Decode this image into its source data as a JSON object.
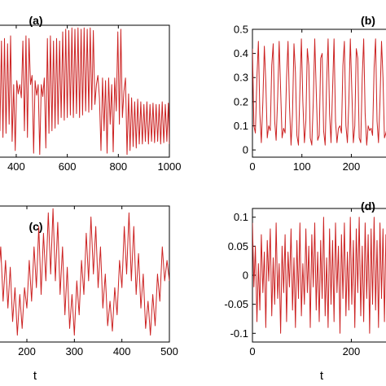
{
  "chart_data": [
    {
      "id": "a",
      "type": "line",
      "panel_label": "(a)",
      "xlabel": "",
      "ylabel": "",
      "xlim": [
        330,
        1000
      ],
      "ylim": [
        0,
        1
      ],
      "xticks": [
        400,
        600,
        800,
        1000
      ],
      "xtick_labels": [
        "400",
        "600",
        "800",
        "1000"
      ],
      "yticks": [],
      "ytick_labels": [],
      "grid": false,
      "series": [
        {
          "color": "#cc2222",
          "x": [
            330,
            336,
            342,
            348,
            354,
            360,
            366,
            372,
            378,
            384,
            390,
            396,
            402,
            408,
            414,
            420,
            426,
            432,
            438,
            444,
            450,
            456,
            462,
            468,
            474,
            480,
            486,
            492,
            498,
            504,
            510,
            516,
            522,
            528,
            534,
            540,
            546,
            552,
            558,
            564,
            570,
            576,
            582,
            588,
            594,
            600,
            606,
            612,
            618,
            624,
            630,
            636,
            642,
            648,
            654,
            660,
            666,
            672,
            678,
            684,
            690,
            696,
            702,
            708,
            714,
            720,
            726,
            732,
            738,
            744,
            750,
            756,
            762,
            768,
            774,
            780,
            786,
            792,
            798,
            804,
            810,
            816,
            822,
            828,
            834,
            840,
            846,
            852,
            858,
            864,
            870,
            876,
            882,
            888,
            894,
            900,
            906,
            912,
            918,
            924,
            930,
            936,
            942,
            948,
            954,
            960,
            966,
            972,
            978,
            984,
            990,
            996,
            1000
          ],
          "y": [
            0.62,
            0.2,
            0.88,
            0.15,
            0.9,
            0.18,
            0.86,
            0.25,
            0.92,
            0.12,
            0.55,
            0.05,
            0.58,
            0.48,
            0.55,
            0.45,
            0.88,
            0.2,
            0.92,
            0.15,
            0.9,
            0.55,
            0.62,
            0.03,
            0.58,
            0.47,
            0.55,
            0.02,
            0.55,
            0.46,
            0.6,
            0.07,
            0.9,
            0.18,
            0.92,
            0.2,
            0.88,
            0.22,
            0.9,
            0.25,
            0.88,
            0.3,
            0.95,
            0.28,
            0.97,
            0.3,
            0.96,
            0.32,
            0.98,
            0.3,
            0.97,
            0.33,
            0.98,
            0.3,
            0.97,
            0.32,
            0.98,
            0.35,
            0.97,
            0.34,
            0.98,
            0.36,
            0.96,
            0.4,
            0.55,
            0.62,
            0.45,
            0.05,
            0.6,
            0.2,
            0.58,
            0.03,
            0.6,
            0.25,
            0.55,
            0.04,
            0.6,
            0.35,
            0.95,
            0.25,
            0.97,
            0.3,
            0.5,
            0.6,
            0.02,
            0.48,
            0.05,
            0.45,
            0.08,
            0.42,
            0.07,
            0.44,
            0.1,
            0.42,
            0.1,
            0.4,
            0.12,
            0.42,
            0.1,
            0.4,
            0.12,
            0.41,
            0.11,
            0.4,
            0.12,
            0.4,
            0.1,
            0.42,
            0.11,
            0.4,
            0.12,
            0.41,
            0.1
          ]
        }
      ]
    },
    {
      "id": "b",
      "type": "line",
      "panel_label": "(b)",
      "xlabel": "",
      "ylabel": "",
      "xlim": [
        0,
        280
      ],
      "ylim": [
        -0.03,
        0.5
      ],
      "xticks": [
        0,
        100,
        200
      ],
      "xtick_labels": [
        "0",
        "100",
        "200"
      ],
      "yticks": [
        0,
        0.1,
        0.2,
        0.3,
        0.4,
        0.5
      ],
      "ytick_labels": [
        "0",
        "0.1",
        "0.2",
        "0.3",
        "0.4",
        "0.5"
      ],
      "grid": false,
      "series": [
        {
          "color": "#cc2222",
          "x": [
            0,
            3,
            6,
            9,
            12,
            15,
            18,
            21,
            24,
            27,
            30,
            33,
            36,
            39,
            42,
            45,
            48,
            51,
            54,
            57,
            60,
            63,
            66,
            69,
            72,
            75,
            78,
            81,
            84,
            87,
            90,
            93,
            96,
            99,
            102,
            105,
            108,
            111,
            114,
            117,
            120,
            123,
            126,
            129,
            132,
            135,
            138,
            141,
            144,
            147,
            150,
            153,
            156,
            159,
            162,
            165,
            168,
            171,
            174,
            177,
            180,
            183,
            186,
            189,
            192,
            195,
            198,
            201,
            204,
            207,
            210,
            213,
            216,
            219,
            222,
            225,
            228,
            231,
            234,
            237,
            240,
            243,
            246,
            249,
            252,
            255,
            258,
            261,
            264,
            267,
            270,
            273,
            276,
            280
          ],
          "y": [
            0.42,
            0.1,
            0.07,
            0.3,
            0.45,
            0.15,
            0.03,
            0.2,
            0.43,
            0.28,
            0.05,
            0.1,
            0.08,
            0.35,
            0.44,
            0.12,
            0.04,
            0.22,
            0.45,
            0.25,
            0.05,
            0.09,
            0.07,
            0.3,
            0.45,
            0.18,
            0.02,
            0.15,
            0.44,
            0.32,
            0.06,
            0.02,
            0.25,
            0.46,
            0.2,
            0.03,
            0.12,
            0.42,
            0.35,
            0.05,
            0.02,
            0.2,
            0.46,
            0.25,
            0.04,
            0.06,
            0.38,
            0.4,
            0.08,
            0.02,
            0.28,
            0.46,
            0.15,
            0.03,
            0.25,
            0.46,
            0.12,
            0.03,
            0.09,
            0.1,
            0.07,
            0.35,
            0.45,
            0.1,
            0.03,
            0.2,
            0.46,
            0.25,
            0.03,
            0.1,
            0.42,
            0.38,
            0.05,
            0.03,
            0.3,
            0.46,
            0.15,
            0.02,
            0.1,
            0.08,
            0.09,
            0.06,
            0.34,
            0.46,
            0.12,
            0.03,
            0.2,
            0.45,
            0.3,
            0.05,
            0.07,
            0.1,
            0.06,
            0.3
          ]
        }
      ]
    },
    {
      "id": "c",
      "type": "line",
      "panel_label": "(c)",
      "xlabel": "t",
      "ylabel": "",
      "xlim": [
        140,
        500
      ],
      "ylim": [
        0,
        1
      ],
      "xticks": [
        200,
        300,
        400,
        500
      ],
      "xtick_labels": [
        "200",
        "300",
        "400",
        "500"
      ],
      "yticks": [],
      "ytick_labels": [],
      "grid": false,
      "series": [
        {
          "color": "#cc2222",
          "x": [
            140,
            145,
            150,
            155,
            160,
            165,
            170,
            175,
            180,
            185,
            190,
            195,
            200,
            205,
            210,
            215,
            220,
            225,
            230,
            235,
            240,
            245,
            250,
            255,
            260,
            265,
            270,
            275,
            280,
            285,
            290,
            295,
            300,
            305,
            310,
            315,
            320,
            325,
            330,
            335,
            340,
            345,
            350,
            355,
            360,
            365,
            370,
            375,
            380,
            385,
            390,
            395,
            400,
            405,
            410,
            415,
            420,
            425,
            430,
            435,
            440,
            445,
            450,
            455,
            460,
            465,
            470,
            475,
            480,
            485,
            490,
            495,
            500
          ],
          "y": [
            0.45,
            0.7,
            0.3,
            0.6,
            0.25,
            0.55,
            0.15,
            0.4,
            0.05,
            0.35,
            0.1,
            0.4,
            0.25,
            0.6,
            0.3,
            0.7,
            0.4,
            0.85,
            0.35,
            0.8,
            0.45,
            0.95,
            0.5,
            0.98,
            0.45,
            0.88,
            0.35,
            0.7,
            0.2,
            0.55,
            0.1,
            0.35,
            0.05,
            0.45,
            0.2,
            0.6,
            0.35,
            0.8,
            0.45,
            0.92,
            0.5,
            0.85,
            0.4,
            0.7,
            0.25,
            0.5,
            0.12,
            0.3,
            0.08,
            0.4,
            0.2,
            0.6,
            0.4,
            0.85,
            0.5,
            0.95,
            0.45,
            0.85,
            0.35,
            0.65,
            0.25,
            0.5,
            0.1,
            0.3,
            0.05,
            0.35,
            0.12,
            0.5,
            0.3,
            0.7,
            0.45,
            0.6,
            0.45
          ]
        }
      ]
    },
    {
      "id": "d",
      "type": "line",
      "panel_label": "(d)",
      "xlabel": "t",
      "ylabel": "",
      "xlim": [
        0,
        280
      ],
      "ylim": [
        -0.115,
        0.115
      ],
      "xticks": [
        0,
        200
      ],
      "xtick_labels": [
        "0",
        "200"
      ],
      "yticks": [
        -0.1,
        -0.05,
        0,
        0.05,
        0.1
      ],
      "ytick_labels": [
        "-0.1",
        "-0.05",
        "0",
        "0.05",
        "0.1"
      ],
      "grid": false,
      "series": [
        {
          "color": "#cc2222",
          "x": [
            0,
            3,
            6,
            9,
            12,
            15,
            18,
            21,
            24,
            27,
            30,
            33,
            36,
            39,
            42,
            45,
            48,
            51,
            54,
            57,
            60,
            63,
            66,
            69,
            72,
            75,
            78,
            81,
            84,
            87,
            90,
            93,
            96,
            99,
            102,
            105,
            108,
            111,
            114,
            117,
            120,
            123,
            126,
            129,
            132,
            135,
            138,
            141,
            144,
            147,
            150,
            153,
            156,
            159,
            162,
            165,
            168,
            171,
            174,
            177,
            180,
            183,
            186,
            189,
            192,
            195,
            198,
            201,
            204,
            207,
            210,
            213,
            216,
            219,
            222,
            225,
            228,
            231,
            234,
            237,
            240,
            243,
            246,
            249,
            252,
            255,
            258,
            261,
            264,
            267,
            270,
            273,
            276,
            280
          ],
          "y": [
            0.09,
            -0.02,
            0.05,
            -0.08,
            0.02,
            -0.06,
            0.07,
            -0.03,
            0.04,
            -0.09,
            0.06,
            -0.01,
            0.08,
            -0.07,
            0.03,
            -0.05,
            0.09,
            -0.04,
            0.02,
            -0.1,
            0.05,
            -0.03,
            0.07,
            -0.08,
            0.04,
            -0.02,
            0.08,
            -0.06,
            0.03,
            -0.09,
            0.06,
            -0.04,
            0.09,
            -0.07,
            0.02,
            -0.05,
            0.08,
            -0.03,
            0.05,
            -0.09,
            0.07,
            -0.02,
            0.09,
            -0.06,
            0.04,
            -0.08,
            0.06,
            -0.04,
            0.1,
            -0.07,
            0.03,
            -0.09,
            0.08,
            -0.05,
            0.06,
            -0.08,
            0.09,
            -0.03,
            0.05,
            -0.1,
            0.07,
            -0.04,
            0.09,
            -0.07,
            0.04,
            -0.06,
            0.1,
            -0.05,
            0.06,
            -0.09,
            0.08,
            -0.03,
            0.1,
            -0.07,
            0.05,
            -0.08,
            0.09,
            -0.04,
            0.07,
            -0.1,
            0.08,
            -0.05,
            0.1,
            -0.06,
            0.06,
            -0.09,
            0.09,
            -0.04,
            0.08,
            -0.08,
            0.07,
            -0.05,
            0.1,
            -0.06
          ]
        }
      ]
    }
  ]
}
